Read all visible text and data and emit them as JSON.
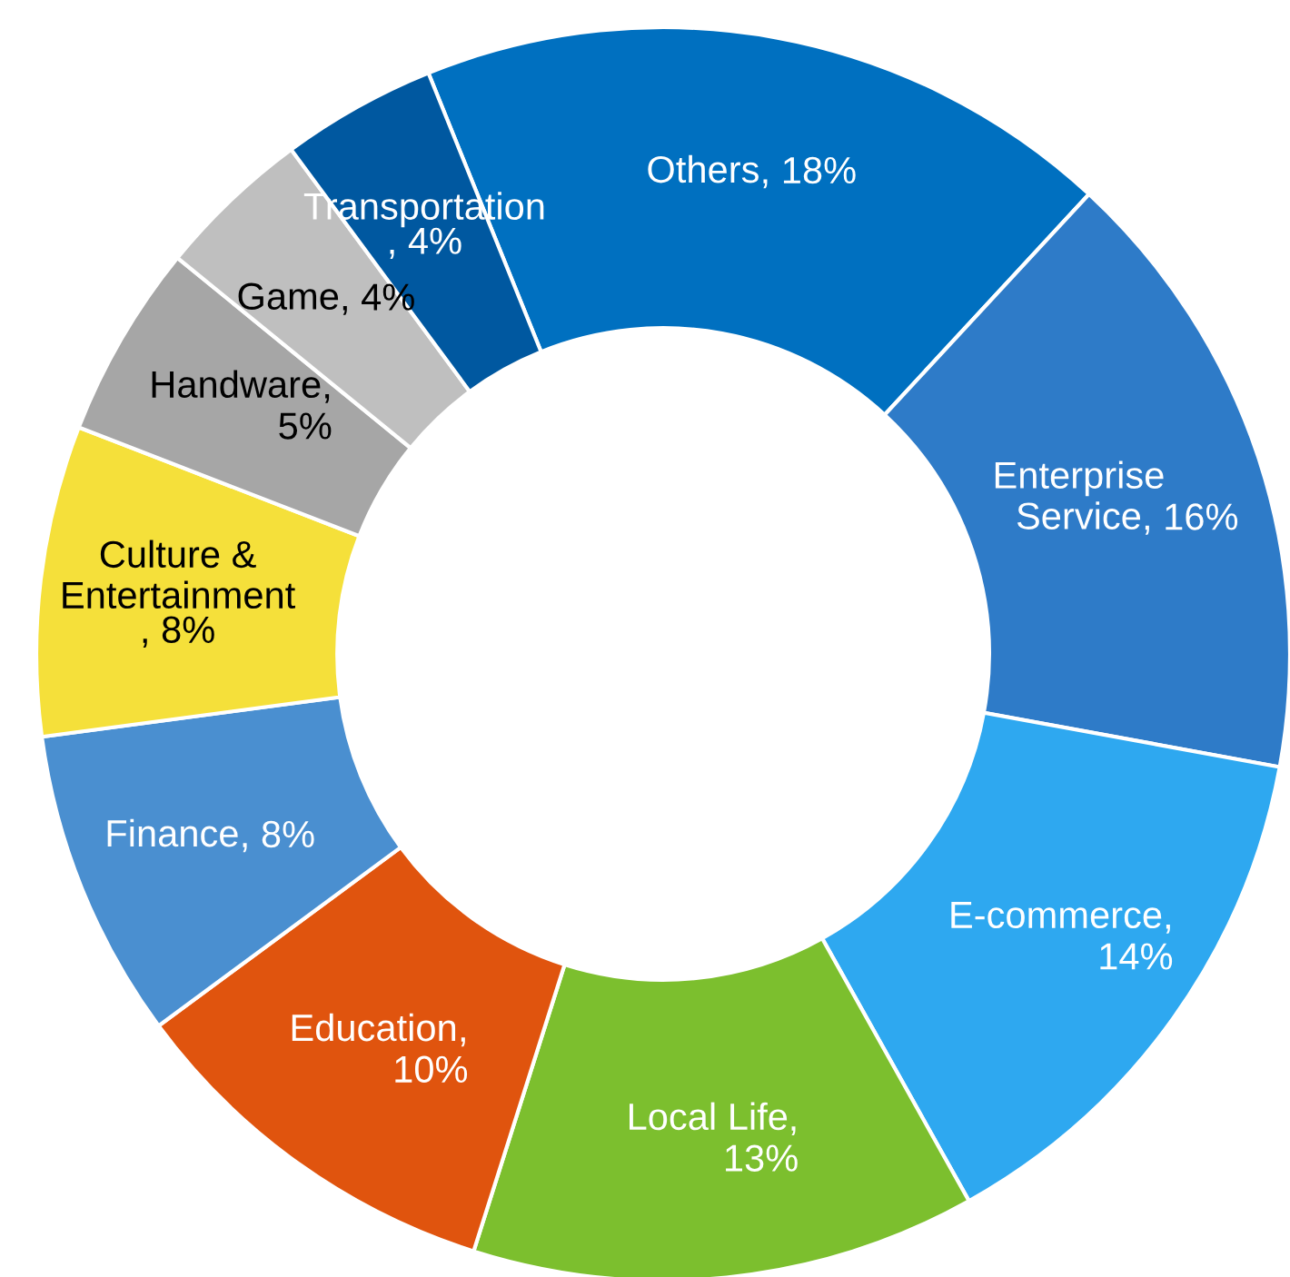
{
  "chart_data": {
    "type": "donut",
    "categories": [
      "Others",
      "Enterprise Service",
      "E-commerce",
      "Local Life",
      "Education",
      "Finance",
      "Culture & Entertainment",
      "Handware",
      "Game",
      "Transportation"
    ],
    "values": [
      18,
      16,
      14,
      13,
      10,
      8,
      8,
      5,
      4,
      4
    ],
    "colors": [
      "#0070c0",
      "#2e7bc8",
      "#2ea8f0",
      "#7cbf2e",
      "#e0540e",
      "#4a8fd0",
      "#f5e03a",
      "#a6a6a6",
      "#bfbfbf",
      "#0058a0"
    ],
    "value_labels": [
      ", 18%",
      ", 16%",
      ",\n14%",
      ",\n13%",
      ",\n10%",
      ", 8%",
      ", 8%",
      ",\n5%",
      ", 4%",
      ", 4%"
    ],
    "legend": false
  }
}
